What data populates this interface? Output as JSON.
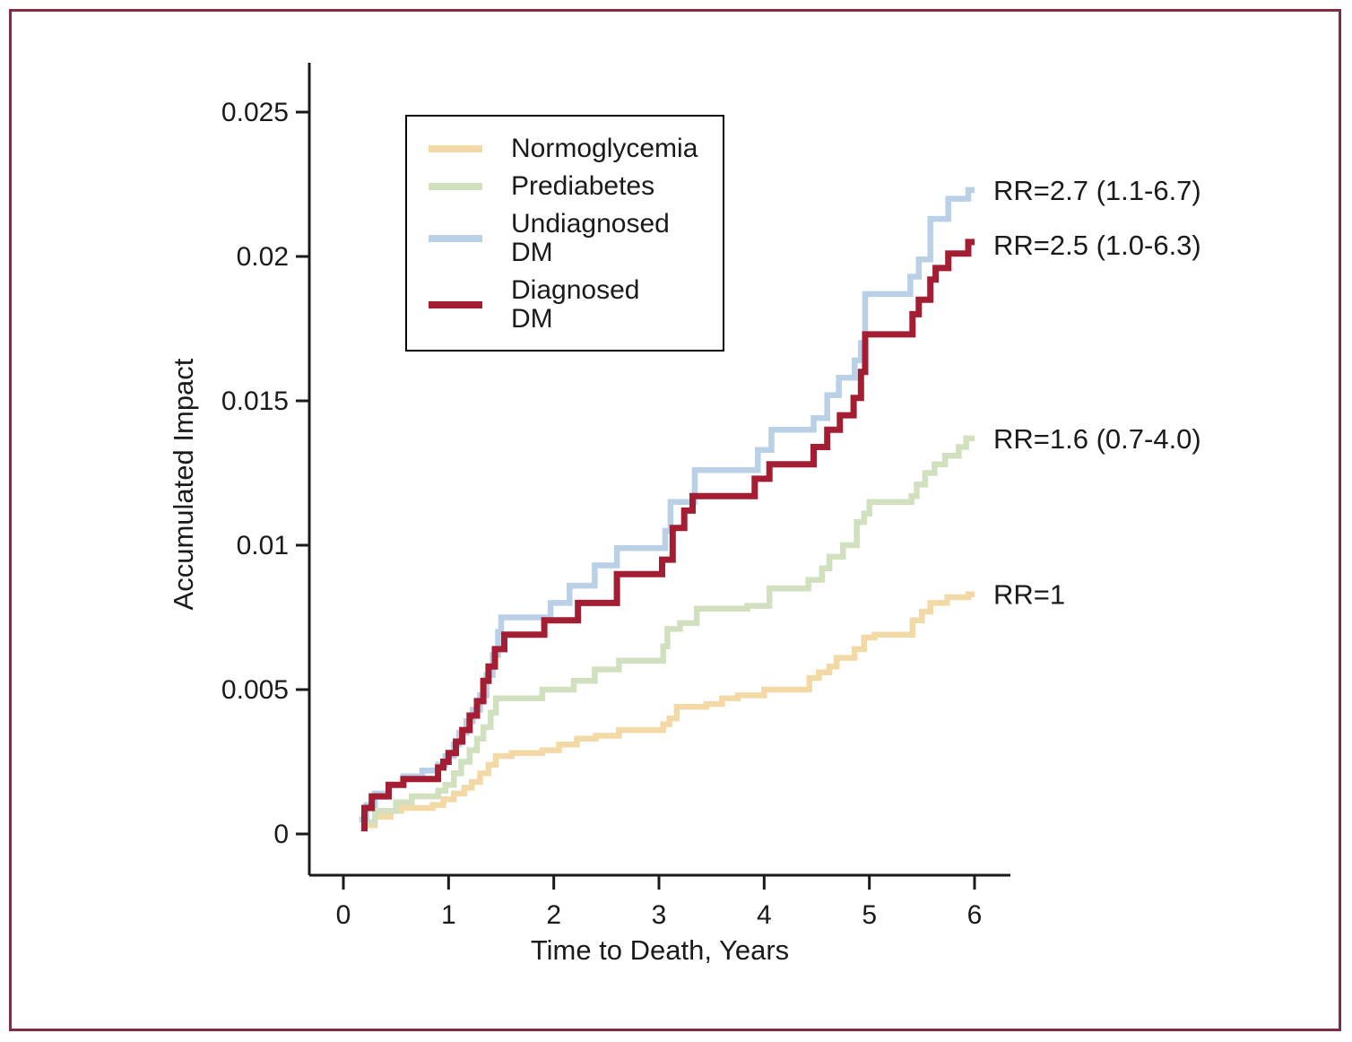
{
  "figure": {
    "frame_border_color": "#7d2e45",
    "background_color": "#ffffff",
    "text_color": "#1a1a1a"
  },
  "legend": {
    "items": [
      {
        "label": "Normoglycemia"
      },
      {
        "label": "Prediabetes"
      },
      {
        "label": "Undiagnosed\nDM"
      },
      {
        "label": "Diagnosed\nDM"
      }
    ]
  },
  "chart_data": {
    "type": "line",
    "subtype": "step-after",
    "title": "",
    "xlabel": "Time to Death, Years",
    "ylabel": "Accumulated Impact",
    "xlim": [
      0,
      6
    ],
    "ylim": [
      0,
      0.025
    ],
    "x_ticks": [
      0,
      1,
      2,
      3,
      4,
      5,
      6
    ],
    "y_ticks": [
      "0",
      "0.005",
      "0.01",
      "0.015",
      "0.02",
      "0.025"
    ],
    "y_tick_values": [
      0,
      0.005,
      0.01,
      0.015,
      0.02,
      0.025
    ],
    "grid": false,
    "legend_position": "upper-left-inside",
    "series": [
      {
        "name": "Normoglycemia",
        "color": "#f3d9a5",
        "points": [
          [
            0.18,
            0.0003
          ],
          [
            0.3,
            0.0006
          ],
          [
            0.45,
            0.0008
          ],
          [
            0.55,
            0.0009
          ],
          [
            0.85,
            0.001
          ],
          [
            0.95,
            0.0012
          ],
          [
            1.05,
            0.0014
          ],
          [
            1.15,
            0.0016
          ],
          [
            1.22,
            0.0018
          ],
          [
            1.3,
            0.0021
          ],
          [
            1.38,
            0.0024
          ],
          [
            1.45,
            0.0027
          ],
          [
            1.6,
            0.0028
          ],
          [
            1.89,
            0.0029
          ],
          [
            2.05,
            0.0031
          ],
          [
            2.22,
            0.0033
          ],
          [
            2.4,
            0.0034
          ],
          [
            2.62,
            0.0036
          ],
          [
            3.04,
            0.0038
          ],
          [
            3.1,
            0.004
          ],
          [
            3.17,
            0.0044
          ],
          [
            3.45,
            0.0045
          ],
          [
            3.6,
            0.0047
          ],
          [
            3.75,
            0.0048
          ],
          [
            4.0,
            0.005
          ],
          [
            4.43,
            0.0054
          ],
          [
            4.52,
            0.0056
          ],
          [
            4.62,
            0.0058
          ],
          [
            4.69,
            0.0061
          ],
          [
            4.86,
            0.0064
          ],
          [
            4.95,
            0.0068
          ],
          [
            5.05,
            0.0069
          ],
          [
            5.41,
            0.0074
          ],
          [
            5.5,
            0.0077
          ],
          [
            5.58,
            0.008
          ],
          [
            5.74,
            0.0082
          ],
          [
            5.94,
            0.0083
          ],
          [
            6.0,
            0.0083
          ]
        ]
      },
      {
        "name": "Prediabetes",
        "color": "#d1e0bf",
        "points": [
          [
            0.17,
            0.0004
          ],
          [
            0.3,
            0.0008
          ],
          [
            0.5,
            0.0011
          ],
          [
            0.65,
            0.0013
          ],
          [
            0.9,
            0.0015
          ],
          [
            0.97,
            0.0017
          ],
          [
            1.05,
            0.0021
          ],
          [
            1.12,
            0.0025
          ],
          [
            1.2,
            0.0029
          ],
          [
            1.27,
            0.0033
          ],
          [
            1.33,
            0.0037
          ],
          [
            1.4,
            0.0042
          ],
          [
            1.45,
            0.0047
          ],
          [
            1.89,
            0.005
          ],
          [
            2.19,
            0.0053
          ],
          [
            2.39,
            0.0057
          ],
          [
            2.62,
            0.006
          ],
          [
            3.04,
            0.0065
          ],
          [
            3.08,
            0.0071
          ],
          [
            3.2,
            0.0073
          ],
          [
            3.36,
            0.0078
          ],
          [
            3.84,
            0.0079
          ],
          [
            4.05,
            0.0085
          ],
          [
            4.42,
            0.0088
          ],
          [
            4.55,
            0.0092
          ],
          [
            4.62,
            0.0096
          ],
          [
            4.75,
            0.01
          ],
          [
            4.88,
            0.0108
          ],
          [
            4.95,
            0.0111
          ],
          [
            5.0,
            0.0115
          ],
          [
            5.4,
            0.0117
          ],
          [
            5.45,
            0.0121
          ],
          [
            5.53,
            0.0125
          ],
          [
            5.62,
            0.0128
          ],
          [
            5.72,
            0.0131
          ],
          [
            5.85,
            0.0134
          ],
          [
            5.92,
            0.0137
          ],
          [
            6.0,
            0.0137
          ]
        ]
      },
      {
        "name": "Undiagnosed DM",
        "color": "#b9d0e6",
        "points": [
          [
            0.15,
            0.0005
          ],
          [
            0.22,
            0.001
          ],
          [
            0.3,
            0.0014
          ],
          [
            0.43,
            0.0017
          ],
          [
            0.57,
            0.002
          ],
          [
            0.75,
            0.0022
          ],
          [
            0.9,
            0.0024
          ],
          [
            0.97,
            0.0027
          ],
          [
            1.05,
            0.0031
          ],
          [
            1.1,
            0.0035
          ],
          [
            1.17,
            0.0039
          ],
          [
            1.23,
            0.0043
          ],
          [
            1.3,
            0.0048
          ],
          [
            1.36,
            0.0055
          ],
          [
            1.42,
            0.0062
          ],
          [
            1.47,
            0.007
          ],
          [
            1.5,
            0.0075
          ],
          [
            1.97,
            0.008
          ],
          [
            2.15,
            0.0086
          ],
          [
            2.39,
            0.0093
          ],
          [
            2.6,
            0.0099
          ],
          [
            3.06,
            0.0105
          ],
          [
            3.11,
            0.0115
          ],
          [
            3.34,
            0.0126
          ],
          [
            3.94,
            0.0133
          ],
          [
            4.07,
            0.014
          ],
          [
            4.47,
            0.0144
          ],
          [
            4.6,
            0.0152
          ],
          [
            4.71,
            0.0158
          ],
          [
            4.86,
            0.0164
          ],
          [
            4.92,
            0.017
          ],
          [
            4.96,
            0.0187
          ],
          [
            5.39,
            0.0193
          ],
          [
            5.47,
            0.0199
          ],
          [
            5.58,
            0.0213
          ],
          [
            5.75,
            0.022
          ],
          [
            5.94,
            0.0223
          ],
          [
            6.0,
            0.0223
          ]
        ]
      },
      {
        "name": "Diagnosed DM",
        "color": "#a31d33",
        "points": [
          [
            0.17,
            0.0002
          ],
          [
            0.2,
            0.0009
          ],
          [
            0.27,
            0.0013
          ],
          [
            0.43,
            0.0017
          ],
          [
            0.57,
            0.0019
          ],
          [
            0.9,
            0.0023
          ],
          [
            0.95,
            0.0025
          ],
          [
            1.0,
            0.0028
          ],
          [
            1.07,
            0.0032
          ],
          [
            1.13,
            0.0036
          ],
          [
            1.2,
            0.0041
          ],
          [
            1.27,
            0.0046
          ],
          [
            1.33,
            0.0053
          ],
          [
            1.38,
            0.0058
          ],
          [
            1.44,
            0.0064
          ],
          [
            1.53,
            0.0069
          ],
          [
            1.91,
            0.0074
          ],
          [
            2.23,
            0.008
          ],
          [
            2.6,
            0.009
          ],
          [
            3.03,
            0.0095
          ],
          [
            3.13,
            0.0106
          ],
          [
            3.24,
            0.0112
          ],
          [
            3.32,
            0.0117
          ],
          [
            3.91,
            0.0123
          ],
          [
            4.05,
            0.0128
          ],
          [
            4.47,
            0.0134
          ],
          [
            4.6,
            0.014
          ],
          [
            4.72,
            0.0145
          ],
          [
            4.85,
            0.0151
          ],
          [
            4.92,
            0.016
          ],
          [
            4.96,
            0.0173
          ],
          [
            5.41,
            0.018
          ],
          [
            5.47,
            0.0185
          ],
          [
            5.58,
            0.0192
          ],
          [
            5.63,
            0.0196
          ],
          [
            5.75,
            0.0201
          ],
          [
            5.94,
            0.0205
          ],
          [
            6.0,
            0.0205
          ]
        ]
      }
    ],
    "annotations": [
      {
        "label": "RR=2.7 (1.1-6.7)",
        "series": "Undiagnosed DM",
        "y": 0.0223
      },
      {
        "label": "RR=2.5 (1.0-6.3)",
        "series": "Diagnosed DM",
        "y": 0.0204
      },
      {
        "label": "RR=1.6 (0.7-4.0)",
        "series": "Prediabetes",
        "y": 0.0137
      },
      {
        "label": "RR=1",
        "series": "Normoglycemia",
        "y": 0.0083
      }
    ]
  }
}
